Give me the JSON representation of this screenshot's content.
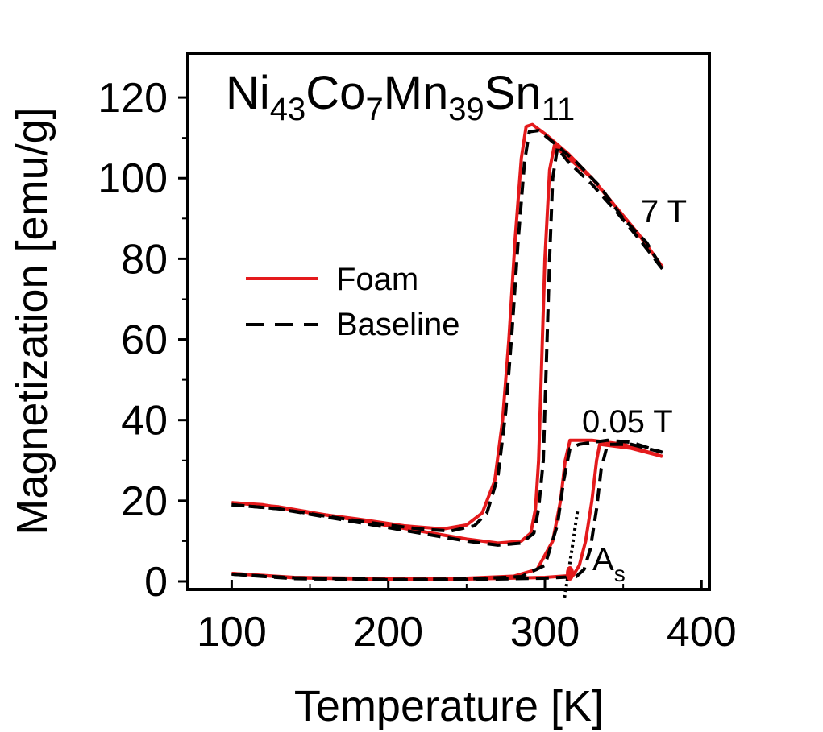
{
  "chart_data": {
    "type": "line",
    "title": {
      "base": "Ni",
      "parts": [
        {
          "el": "Ni",
          "sub": "43"
        },
        {
          "el": "Co",
          "sub": "7"
        },
        {
          "el": "Mn",
          "sub": "39"
        },
        {
          "el": "Sn",
          "sub": "11"
        }
      ]
    },
    "xlabel": "Temperature [K]",
    "ylabel": "Magnetization [emu/g]",
    "xlim": [
      72,
      405
    ],
    "ylim": [
      -2,
      131
    ],
    "xticks": [
      100,
      200,
      300,
      400
    ],
    "yticks": [
      0,
      20,
      40,
      60,
      80,
      100,
      120
    ],
    "xtick_labels": [
      "100",
      "200",
      "300",
      "400"
    ],
    "ytick_labels": [
      "0",
      "20",
      "40",
      "60",
      "80",
      "100",
      "120"
    ],
    "legend": {
      "placement": "center-left",
      "entries": [
        {
          "label": "Foam",
          "style": "solid",
          "color": "#e41a1c"
        },
        {
          "label": "Baseline",
          "style": "dashed",
          "color": "#000000"
        }
      ]
    },
    "annotations": {
      "field_high": "7 T",
      "field_low": "0.05 T",
      "as_main": "A",
      "as_sub": "s"
    },
    "series": [
      {
        "name": "Foam",
        "color": "#e41a1c",
        "dash": "solid",
        "segments": [
          [
            [
              100,
              19.5
            ],
            [
              120,
              19
            ],
            [
              150,
              17
            ],
            [
              180,
              15.5
            ],
            [
              210,
              13.8
            ],
            [
              235,
              13
            ],
            [
              250,
              14
            ],
            [
              260,
              17
            ],
            [
              268,
              25
            ],
            [
              273,
              40
            ],
            [
              277,
              60
            ],
            [
              281,
              85
            ],
            [
              285,
              105
            ],
            [
              288,
              112.8
            ],
            [
              292,
              113.3
            ],
            [
              300,
              111
            ],
            [
              315,
              106
            ],
            [
              330,
              100
            ],
            [
              345,
              93
            ],
            [
              360,
              86
            ],
            [
              375,
              78
            ]
          ],
          [
            [
              375,
              78
            ],
            [
              360,
              86
            ],
            [
              345,
              93
            ],
            [
              330,
              100
            ],
            [
              315,
              105
            ],
            [
              306,
              108
            ],
            [
              303,
              102
            ],
            [
              300,
              80
            ],
            [
              298,
              55
            ],
            [
              296,
              30
            ],
            [
              294,
              18
            ],
            [
              291,
              12
            ],
            [
              285,
              10
            ],
            [
              270,
              9.5
            ],
            [
              250,
              10.5
            ],
            [
              220,
              12.5
            ],
            [
              190,
              14.5
            ],
            [
              160,
              16.5
            ],
            [
              130,
              18.5
            ],
            [
              100,
              19.5
            ]
          ],
          [
            [
              100,
              2
            ],
            [
              140,
              1
            ],
            [
              200,
              0.7
            ],
            [
              250,
              0.8
            ],
            [
              280,
              1.3
            ],
            [
              295,
              3
            ],
            [
              305,
              10
            ],
            [
              310,
              20
            ],
            [
              313,
              30
            ],
            [
              316,
              35
            ],
            [
              330,
              35
            ],
            [
              350,
              34
            ],
            [
              375,
              31
            ]
          ],
          [
            [
              375,
              31
            ],
            [
              355,
              33
            ],
            [
              335,
              34
            ],
            [
              333,
              30
            ],
            [
              330,
              20
            ],
            [
              326,
              10
            ],
            [
              322,
              4
            ],
            [
              318,
              1.5
            ],
            [
              300,
              1
            ],
            [
              250,
              0.6
            ],
            [
              200,
              0.5
            ],
            [
              140,
              0.9
            ],
            [
              100,
              2
            ]
          ]
        ]
      },
      {
        "name": "Baseline",
        "color": "#000000",
        "dash": "dashed",
        "segments": [
          [
            [
              100,
              19
            ],
            [
              130,
              18
            ],
            [
              160,
              16.2
            ],
            [
              190,
              14.5
            ],
            [
              220,
              13
            ],
            [
              240,
              12.5
            ],
            [
              255,
              13.8
            ],
            [
              263,
              17
            ],
            [
              270,
              26
            ],
            [
              275,
              42
            ],
            [
              279,
              62
            ],
            [
              283,
              85
            ],
            [
              287,
              104
            ],
            [
              290,
              111.5
            ],
            [
              296,
              111.8
            ],
            [
              305,
              109
            ],
            [
              320,
              104
            ],
            [
              335,
              98
            ],
            [
              350,
              90
            ],
            [
              365,
              84
            ],
            [
              375,
              77.5
            ]
          ],
          [
            [
              375,
              77.5
            ],
            [
              360,
              85
            ],
            [
              345,
              92
            ],
            [
              330,
              98.5
            ],
            [
              315,
              104
            ],
            [
              308,
              107.5
            ],
            [
              305,
              100
            ],
            [
              303,
              80
            ],
            [
              301,
              55
            ],
            [
              299,
              30
            ],
            [
              296,
              18
            ],
            [
              293,
              12
            ],
            [
              285,
              9.5
            ],
            [
              270,
              9
            ],
            [
              250,
              10
            ],
            [
              220,
              12
            ],
            [
              190,
              14
            ],
            [
              160,
              16
            ],
            [
              130,
              18
            ],
            [
              100,
              19
            ]
          ],
          [
            [
              100,
              1.8
            ],
            [
              140,
              0.9
            ],
            [
              200,
              0.5
            ],
            [
              250,
              0.6
            ],
            [
              285,
              1.2
            ],
            [
              300,
              4
            ],
            [
              308,
              14
            ],
            [
              312,
              25
            ],
            [
              316,
              33
            ],
            [
              322,
              34
            ],
            [
              340,
              35
            ],
            [
              355,
              34.5
            ],
            [
              375,
              32
            ]
          ],
          [
            [
              375,
              32
            ],
            [
              355,
              34
            ],
            [
              340,
              34
            ],
            [
              336,
              28
            ],
            [
              333,
              18
            ],
            [
              329,
              8
            ],
            [
              325,
              3
            ],
            [
              320,
              1.2
            ],
            [
              300,
              0.8
            ],
            [
              250,
              0.5
            ],
            [
              200,
              0.4
            ],
            [
              140,
              0.7
            ],
            [
              100,
              1.8
            ]
          ]
        ]
      }
    ],
    "markers": {
      "as_temperature": 316,
      "as_line": [
        [
          312.5,
          -4
        ],
        [
          315,
          2
        ],
        [
          318,
          10
        ],
        [
          321,
          18
        ]
      ]
    }
  }
}
